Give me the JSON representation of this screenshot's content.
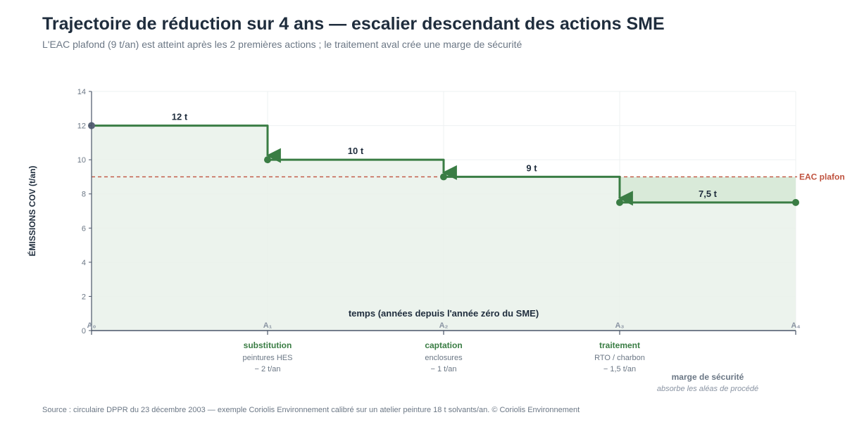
{
  "title": "Trajectoire de réduction sur 4 ans — escalier descendant des actions SME",
  "subtitle": "L'EAC plafond (9 t/an) est atteint après les 2 premières actions ; le traitement aval crée une marge de sécurité",
  "source": "Source : circulaire DPPR du 23 décembre 2003 — exemple Coriolis Environnement calibré sur un atelier peinture 18 t solvants/an. © Coriolis Environnement",
  "colors": {
    "step": "#3a7d44",
    "fill": "#e9f1ea",
    "margin_fill": "#d9ead9",
    "threshold": "#c0533f",
    "start_point": "#5a6478",
    "axis": "#4a5568",
    "grid": "#eef0f2"
  },
  "chart_data": {
    "type": "line",
    "step": true,
    "ylabel": "ÉMISSIONS COV (t/an)",
    "xlabel": "temps (années depuis l'année zéro du SME)",
    "ylim": [
      0,
      14
    ],
    "yticks": [
      0,
      2,
      4,
      6,
      8,
      10,
      12,
      14
    ],
    "grid": true,
    "x": [
      0,
      1,
      2,
      3,
      4
    ],
    "x_tick_labels": [
      "A₀",
      "A₁",
      "A₂",
      "A₃",
      "A₄"
    ],
    "values": [
      12,
      10,
      9,
      7.5,
      7.5
    ],
    "level_labels": [
      "12 t",
      "10 t",
      "9 t",
      "7,5 t"
    ],
    "threshold": {
      "value": 9,
      "label": "EAC plafond"
    },
    "actions": [
      {
        "x": 1,
        "name": "substitution",
        "detail": "peintures HES",
        "reduction": "− 2 t/an"
      },
      {
        "x": 2,
        "name": "captation",
        "detail": "enclosures",
        "reduction": "− 1 t/an"
      },
      {
        "x": 3,
        "name": "traitement",
        "detail": "RTO / charbon",
        "reduction": "− 1,5 t/an"
      }
    ],
    "margin_annotation": {
      "title": "marge de sécurité",
      "note": "absorbe les aléas de procédé"
    }
  }
}
